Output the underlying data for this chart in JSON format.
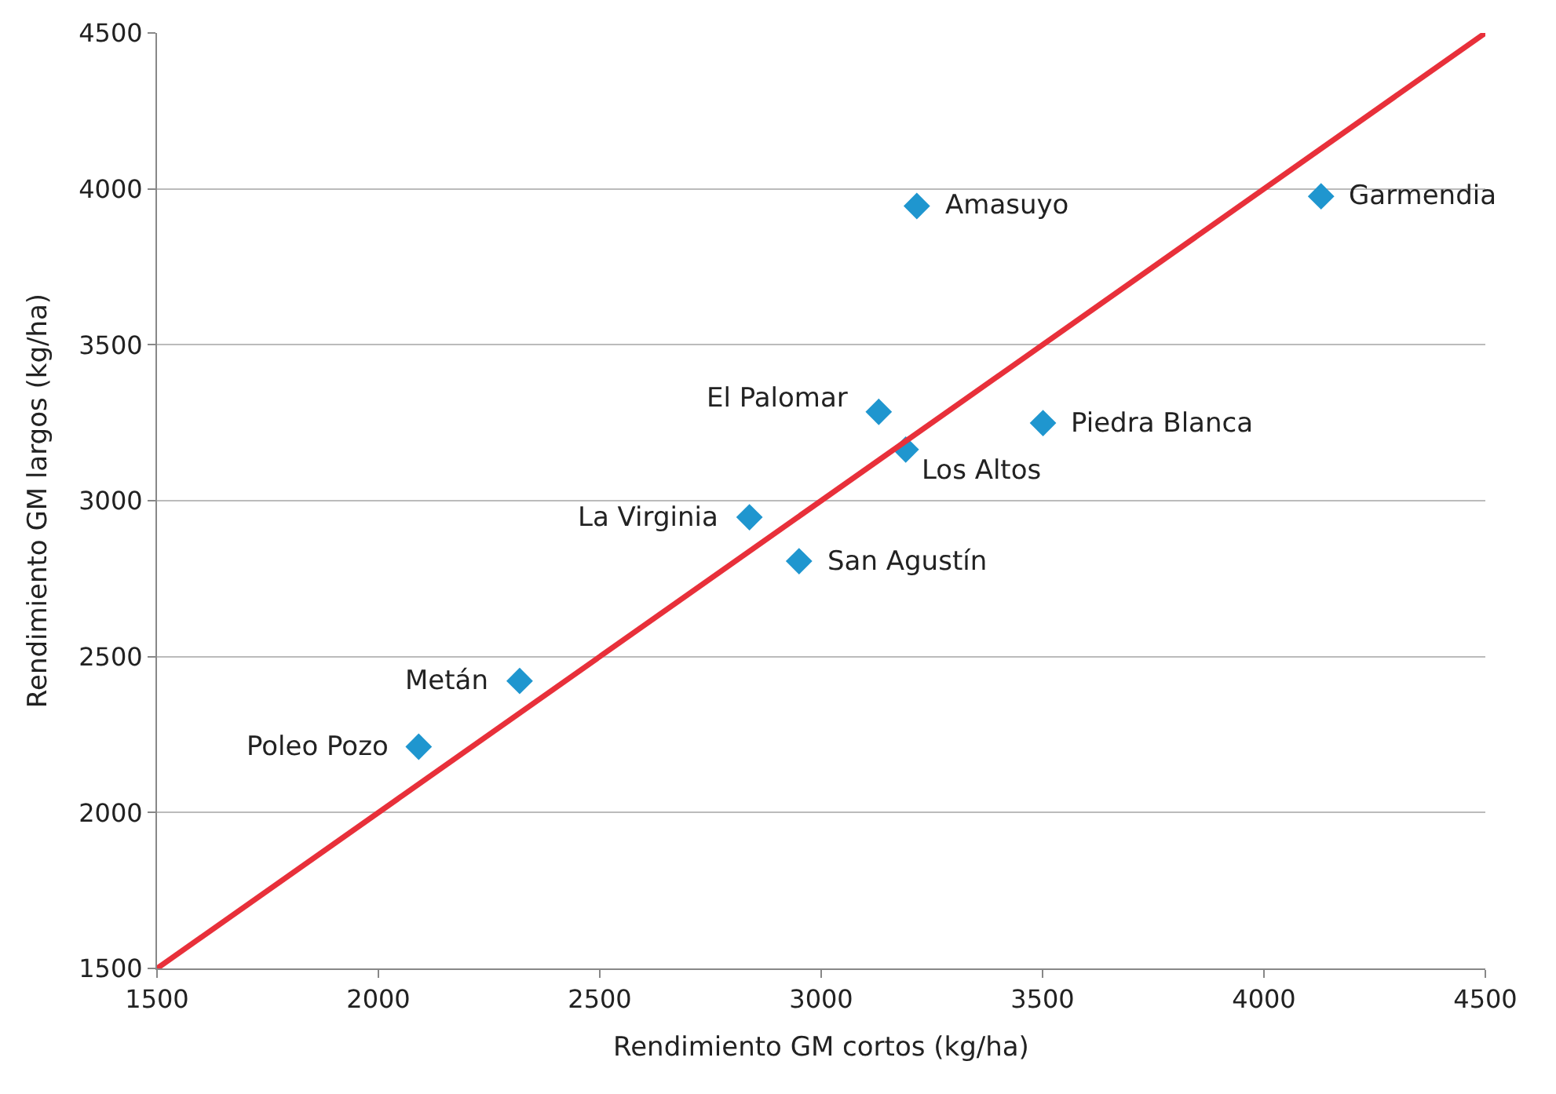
{
  "chart_data": {
    "type": "scatter",
    "xlabel": "Rendimiento GM cortos (kg/ha)",
    "ylabel": "Rendimiento GM largos (kg/ha)",
    "xlim": [
      1500,
      4500
    ],
    "xticks": [
      1500,
      2000,
      2500,
      3000,
      3500,
      4000,
      4500
    ],
    "ylim": [
      1500,
      4500
    ],
    "yticks": [
      1500,
      2000,
      2500,
      3000,
      3500,
      4000,
      4500
    ],
    "grid": "y",
    "marker": "diamond",
    "series": [
      {
        "color": "#1f96cf",
        "x": [
          4129,
          3216,
          3130,
          3501,
          3191,
          2838,
          2950,
          2319,
          2091
        ],
        "values": [
          3976,
          3945,
          3285,
          3249,
          3164,
          2947,
          2806,
          2422,
          2211
        ]
      },
      {
        "type": "line",
        "color": "#e8303a",
        "marker": "none",
        "x": [
          1500,
          4500
        ],
        "values": [
          1500,
          4500
        ]
      }
    ],
    "annotations": [
      {
        "text": "Garmendia",
        "x": 4129,
        "y": 3976
      },
      {
        "text": "Amasuyo",
        "x": 3216,
        "y": 3945
      },
      {
        "text": "El Palomar",
        "x": 3130,
        "y": 3285
      },
      {
        "text": "Piedra Blanca",
        "x": 3501,
        "y": 3249
      },
      {
        "text": "Los Altos",
        "x": 3191,
        "y": 3164
      },
      {
        "text": "La Virginia",
        "x": 2838,
        "y": 2947
      },
      {
        "text": "San Agustín",
        "x": 2950,
        "y": 2806
      },
      {
        "text": "Metán",
        "x": 2319,
        "y": 2422
      },
      {
        "text": "Poleo Pozo",
        "x": 2091,
        "y": 2211
      }
    ]
  }
}
